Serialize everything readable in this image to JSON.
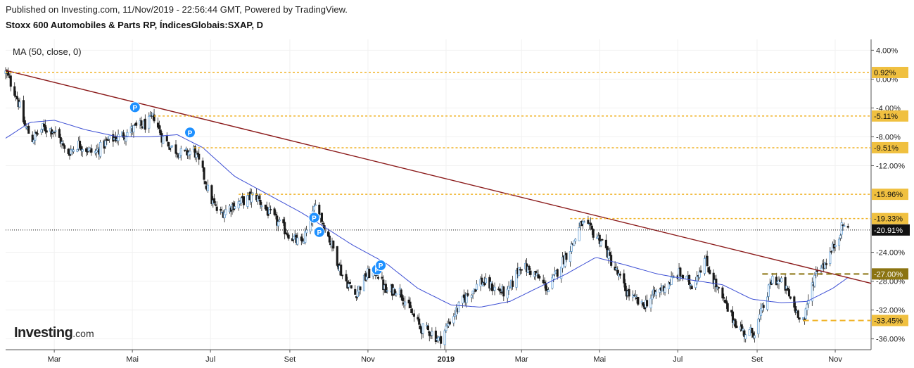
{
  "header": {
    "published": "Published on Investing.com, 11/Nov/2019 - 22:56:44 GMT, Powered by TradingView.",
    "title": "Stoxx 600 Automobiles & Parts RP, ÍndicesGlobais:SXAP, D"
  },
  "brand": {
    "name": "Investing",
    "suffix": ".com"
  },
  "chart_data": {
    "type": "candlestick",
    "indicator_label": "MA (50, close, 0)",
    "y_axis": {
      "unit": "%",
      "range": [
        -37.5,
        5.5
      ],
      "ticks": [
        "4.00%",
        "0.00%",
        "-4.00%",
        "-8.00%",
        "-12.00%",
        "-24.00%",
        "-28.00%",
        "-32.00%",
        "-36.00%"
      ],
      "tick_values": [
        4,
        0,
        -4,
        -8,
        -12,
        -24,
        -28,
        -32,
        -36
      ]
    },
    "x_axis": {
      "labels": [
        "Mar",
        "Mai",
        "Jul",
        "Set",
        "Nov",
        "2019",
        "Mar",
        "Mai",
        "Jul",
        "Set",
        "Nov"
      ],
      "label_dates": [
        "2018-03-01",
        "2018-05-01",
        "2018-07-01",
        "2018-09-01",
        "2018-11-01",
        "2019-01-01",
        "2019-03-01",
        "2019-05-01",
        "2019-07-01",
        "2019-09-01",
        "2019-11-01"
      ],
      "range": [
        "2018-01-22",
        "2019-11-29"
      ]
    },
    "grid": true,
    "horizontal_levels": [
      {
        "value": 0.92,
        "label": "0.92%",
        "from": "2018-01-22",
        "style": "dotted",
        "color": "#f0b429"
      },
      {
        "value": -5.11,
        "label": "-5.11%",
        "from": "2018-05-18",
        "style": "dotted",
        "color": "#f0b429"
      },
      {
        "value": -9.51,
        "label": "-9.51%",
        "from": "2018-06-18",
        "style": "dotted",
        "color": "#f0b429"
      },
      {
        "value": -15.96,
        "label": "-15.96%",
        "from": "2018-07-23",
        "style": "dotted",
        "color": "#f0b429"
      },
      {
        "value": -19.33,
        "label": "-19.33%",
        "from": "2019-04-08",
        "style": "dotted",
        "color": "#f0b429"
      },
      {
        "value": -27.0,
        "label": "-27.00%",
        "from": "2019-09-05",
        "style": "dashed",
        "color": "#8b7412"
      },
      {
        "value": -33.45,
        "label": "-33.45%",
        "from": "2019-10-07",
        "style": "dashed",
        "color": "#f0b429"
      }
    ],
    "current_price": {
      "value": -20.91,
      "label": "-20.91%"
    },
    "trendline": {
      "from": {
        "date": "2018-01-22",
        "value": 1.2
      },
      "to": {
        "date": "2019-11-29",
        "value": -28.3
      },
      "color": "#8b1a1a"
    },
    "markers": [
      {
        "date": "2018-05-03",
        "value": -3.9,
        "label": "P"
      },
      {
        "date": "2018-06-15",
        "value": -7.4,
        "label": "P"
      },
      {
        "date": "2018-09-20",
        "value": -19.2,
        "label": "P"
      },
      {
        "date": "2018-09-24",
        "value": -21.2,
        "label": "P"
      },
      {
        "date": "2018-11-08",
        "value": -26.4,
        "label": "P"
      },
      {
        "date": "2018-11-11",
        "value": -25.8,
        "label": "P"
      }
    ],
    "series_anchors": [
      [
        "2018-01-22",
        0.9
      ],
      [
        "2018-01-30",
        -2.0
      ],
      [
        "2018-02-06",
        -6.5
      ],
      [
        "2018-02-12",
        -8.3
      ],
      [
        "2018-02-20",
        -6.8
      ],
      [
        "2018-02-28",
        -7.0
      ],
      [
        "2018-03-06",
        -8.5
      ],
      [
        "2018-03-10",
        -10.4
      ],
      [
        "2018-03-20",
        -9.0
      ],
      [
        "2018-04-01",
        -10.3
      ],
      [
        "2018-04-12",
        -8.6
      ],
      [
        "2018-04-25",
        -7.6
      ],
      [
        "2018-05-05",
        -6.6
      ],
      [
        "2018-05-12",
        -6.3
      ],
      [
        "2018-05-18",
        -5.2
      ],
      [
        "2018-05-24",
        -8.0
      ],
      [
        "2018-06-01",
        -9.5
      ],
      [
        "2018-06-10",
        -10.5
      ],
      [
        "2018-06-18",
        -9.8
      ],
      [
        "2018-06-25",
        -13.0
      ],
      [
        "2018-07-01",
        -16.5
      ],
      [
        "2018-07-08",
        -18.8
      ],
      [
        "2018-07-18",
        -17.5
      ],
      [
        "2018-07-28",
        -16.8
      ],
      [
        "2018-08-05",
        -16.0
      ],
      [
        "2018-08-12",
        -17.8
      ],
      [
        "2018-08-22",
        -19.8
      ],
      [
        "2018-09-02",
        -21.8
      ],
      [
        "2018-09-10",
        -23.0
      ],
      [
        "2018-09-17",
        -19.8
      ],
      [
        "2018-09-22",
        -17.2
      ],
      [
        "2018-09-28",
        -20.5
      ],
      [
        "2018-10-05",
        -23.5
      ],
      [
        "2018-10-12",
        -27.2
      ],
      [
        "2018-10-22",
        -29.8
      ],
      [
        "2018-11-01",
        -27.0
      ],
      [
        "2018-11-08",
        -26.7
      ],
      [
        "2018-11-15",
        -29.5
      ],
      [
        "2018-11-25",
        -29.0
      ],
      [
        "2018-12-03",
        -31.8
      ],
      [
        "2018-12-12",
        -34.5
      ],
      [
        "2018-12-20",
        -35.0
      ],
      [
        "2018-12-27",
        -36.2
      ],
      [
        "2019-01-04",
        -33.5
      ],
      [
        "2019-01-15",
        -30.5
      ],
      [
        "2019-01-28",
        -28.0
      ],
      [
        "2019-02-08",
        -29.0
      ],
      [
        "2019-02-18",
        -29.8
      ],
      [
        "2019-02-28",
        -25.8
      ],
      [
        "2019-03-10",
        -26.8
      ],
      [
        "2019-03-22",
        -29.2
      ],
      [
        "2019-04-01",
        -25.5
      ],
      [
        "2019-04-10",
        -22.8
      ],
      [
        "2019-04-17",
        -20.0
      ],
      [
        "2019-04-24",
        -21.0
      ],
      [
        "2019-05-03",
        -22.5
      ],
      [
        "2019-05-12",
        -26.0
      ],
      [
        "2019-05-22",
        -29.5
      ],
      [
        "2019-06-03",
        -31.5
      ],
      [
        "2019-06-12",
        -30.0
      ],
      [
        "2019-06-22",
        -28.5
      ],
      [
        "2019-07-02",
        -27.0
      ],
      [
        "2019-07-12",
        -28.5
      ],
      [
        "2019-07-22",
        -25.0
      ],
      [
        "2019-08-02",
        -29.5
      ],
      [
        "2019-08-12",
        -33.0
      ],
      [
        "2019-08-22",
        -35.2
      ],
      [
        "2019-08-30",
        -35.0
      ],
      [
        "2019-09-06",
        -31.5
      ],
      [
        "2019-09-13",
        -27.6
      ],
      [
        "2019-09-22",
        -28.5
      ],
      [
        "2019-10-01",
        -32.0
      ],
      [
        "2019-10-08",
        -33.4
      ],
      [
        "2019-10-13",
        -29.0
      ],
      [
        "2019-10-18",
        -26.2
      ],
      [
        "2019-10-24",
        -25.5
      ],
      [
        "2019-10-30",
        -23.5
      ],
      [
        "2019-11-05",
        -21.0
      ],
      [
        "2019-11-08",
        -20.0
      ],
      [
        "2019-11-11",
        -20.9
      ]
    ],
    "ma_anchors": [
      [
        "2018-01-22",
        -8.2
      ],
      [
        "2018-02-10",
        -6.0
      ],
      [
        "2018-03-01",
        -5.7
      ],
      [
        "2018-03-25",
        -7.0
      ],
      [
        "2018-04-20",
        -8.0
      ],
      [
        "2018-05-15",
        -8.0
      ],
      [
        "2018-06-05",
        -7.7
      ],
      [
        "2018-06-25",
        -9.5
      ],
      [
        "2018-07-20",
        -13.5
      ],
      [
        "2018-08-15",
        -16.0
      ],
      [
        "2018-09-10",
        -18.5
      ],
      [
        "2018-09-28",
        -20.5
      ],
      [
        "2018-10-20",
        -23.0
      ],
      [
        "2018-11-15",
        -25.5
      ],
      [
        "2018-12-10",
        -29.0
      ],
      [
        "2019-01-05",
        -31.3
      ],
      [
        "2019-01-28",
        -31.6
      ],
      [
        "2019-02-20",
        -30.8
      ],
      [
        "2019-03-15",
        -28.8
      ],
      [
        "2019-04-05",
        -27.0
      ],
      [
        "2019-04-28",
        -24.7
      ],
      [
        "2019-05-20",
        -25.7
      ],
      [
        "2019-06-15",
        -27.0
      ],
      [
        "2019-07-10",
        -27.8
      ],
      [
        "2019-08-05",
        -28.5
      ],
      [
        "2019-08-28",
        -30.5
      ],
      [
        "2019-09-20",
        -31.0
      ],
      [
        "2019-10-10",
        -30.8
      ],
      [
        "2019-10-30",
        -29.0
      ],
      [
        "2019-11-11",
        -27.5
      ]
    ]
  }
}
